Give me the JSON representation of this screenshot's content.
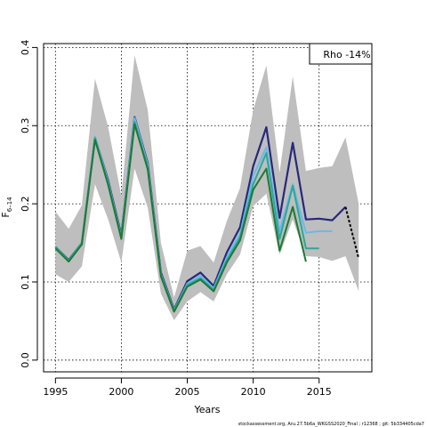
{
  "chart_data": {
    "type": "line",
    "xlabel": "Years",
    "ylabel": "F",
    "ylabel_sub": "6–14",
    "xlim": [
      1994.1,
      2019.0
    ],
    "ylim": [
      -0.015,
      0.405
    ],
    "x_ticks": [
      1995,
      2000,
      2005,
      2010,
      2015
    ],
    "y_ticks": [
      0.0,
      0.1,
      0.2,
      0.3,
      0.4
    ],
    "grid": "dotted",
    "annotation": "Rho -14%",
    "band": {
      "color": "#bebebe",
      "x": [
        1995,
        1996,
        1997,
        1998,
        1999,
        2000,
        2001,
        2002,
        2003,
        2004,
        2005,
        2006,
        2007,
        2008,
        2009,
        2010,
        2011,
        2012,
        2013,
        2014,
        2015,
        2016,
        2017,
        2018
      ],
      "upper": [
        0.19,
        0.168,
        0.198,
        0.36,
        0.298,
        0.21,
        0.39,
        0.32,
        0.15,
        0.08,
        0.14,
        0.146,
        0.125,
        0.178,
        0.22,
        0.32,
        0.377,
        0.24,
        0.363,
        0.242,
        0.246,
        0.248,
        0.285,
        0.2
      ],
      "lower": [
        0.11,
        0.1,
        0.12,
        0.225,
        0.18,
        0.125,
        0.245,
        0.195,
        0.085,
        0.051,
        0.075,
        0.087,
        0.075,
        0.11,
        0.135,
        0.197,
        0.213,
        0.135,
        0.18,
        0.133,
        0.132,
        0.127,
        0.133,
        0.088
      ]
    },
    "series": [
      {
        "color": "#28287a",
        "x": [
          1995,
          1996,
          1997,
          1998,
          1999,
          2000,
          2001,
          2002,
          2003,
          2004,
          2005,
          2006,
          2007,
          2008,
          2009,
          2010,
          2011,
          2012,
          2013,
          2014,
          2015,
          2016,
          2017
        ],
        "y": [
          0.145,
          0.128,
          0.15,
          0.285,
          0.23,
          0.16,
          0.311,
          0.252,
          0.112,
          0.065,
          0.101,
          0.112,
          0.095,
          0.138,
          0.17,
          0.248,
          0.298,
          0.182,
          0.278,
          0.18,
          0.181,
          0.179,
          0.196
        ]
      },
      {
        "color": "#6cb8e8",
        "x": [
          1995,
          1996,
          1997,
          1998,
          1999,
          2000,
          2001,
          2002,
          2003,
          2004,
          2005,
          2006,
          2007,
          2008,
          2009,
          2010,
          2011,
          2012,
          2013,
          2014,
          2015,
          2016
        ],
        "y": [
          0.145,
          0.127,
          0.15,
          0.286,
          0.228,
          0.158,
          0.31,
          0.25,
          0.11,
          0.064,
          0.098,
          0.108,
          0.092,
          0.132,
          0.161,
          0.236,
          0.272,
          0.165,
          0.225,
          0.163,
          0.165,
          0.165
        ]
      },
      {
        "color": "#2aa89c",
        "x": [
          1995,
          1996,
          1997,
          1998,
          1999,
          2000,
          2001,
          2002,
          2003,
          2004,
          2005,
          2006,
          2007,
          2008,
          2009,
          2010,
          2011,
          2012,
          2013,
          2014,
          2015
        ],
        "y": [
          0.145,
          0.127,
          0.15,
          0.284,
          0.226,
          0.157,
          0.305,
          0.247,
          0.109,
          0.063,
          0.096,
          0.105,
          0.09,
          0.128,
          0.157,
          0.225,
          0.265,
          0.155,
          0.223,
          0.143,
          0.143
        ]
      },
      {
        "color": "#1c7a32",
        "x": [
          1995,
          1996,
          1997,
          1998,
          1999,
          2000,
          2001,
          2002,
          2003,
          2004,
          2005,
          2006,
          2007,
          2008,
          2009,
          2010,
          2011,
          2012,
          2013,
          2014
        ],
        "y": [
          0.143,
          0.126,
          0.148,
          0.282,
          0.224,
          0.155,
          0.302,
          0.244,
          0.107,
          0.062,
          0.094,
          0.103,
          0.088,
          0.125,
          0.153,
          0.218,
          0.245,
          0.14,
          0.196,
          0.126
        ]
      }
    ],
    "forecast": {
      "color": "#000000",
      "x": [
        2017,
        2018
      ],
      "y": [
        0.196,
        0.13
      ]
    }
  },
  "footer": "stockassessment.org, Aru.27.5b6a_WKGSS2020_Final ; r12368 ; git: 5b334405cda7"
}
